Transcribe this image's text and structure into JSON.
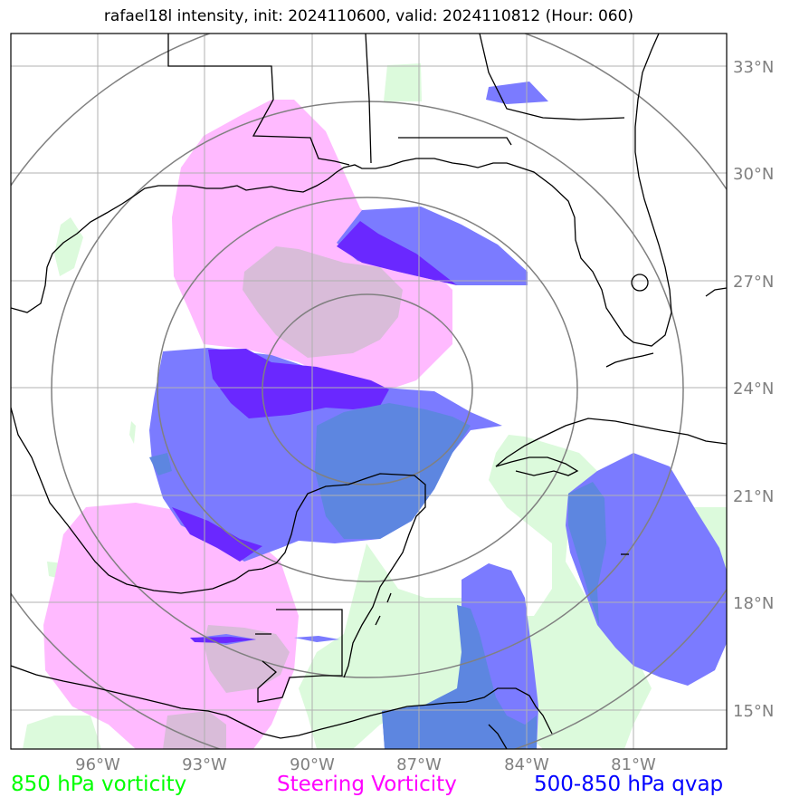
{
  "title": "rafael18l intensity, init: 2024110600, valid: 2024110812 (Hour: 060)",
  "lat_labels": [
    "33°N",
    "30°N",
    "27°N",
    "24°N",
    "21°N",
    "18°N",
    "15°N"
  ],
  "lon_labels": [
    "96°W",
    "93°W",
    "90°W",
    "87°W",
    "84°W",
    "81°W"
  ],
  "legend": [
    {
      "label": "850 hPa vorticity",
      "color": "#00ff00"
    },
    {
      "label": "Steering Vorticity",
      "color": "#ff00ff"
    },
    {
      "label": "500-850 hPa qvap",
      "color": "#0000ff"
    }
  ],
  "colors": {
    "vorticity_850": "#dcfadc",
    "steering": "#ffbaff",
    "qvap": "#7b7bff",
    "qvap_dark": "#6a28ff",
    "overlap_pink_green": "#d9bcd9",
    "overlap_blue_green": "#5d86e0",
    "grid": "#b0b0b0",
    "range_rings": "#808080",
    "coastline": "#000000"
  }
}
